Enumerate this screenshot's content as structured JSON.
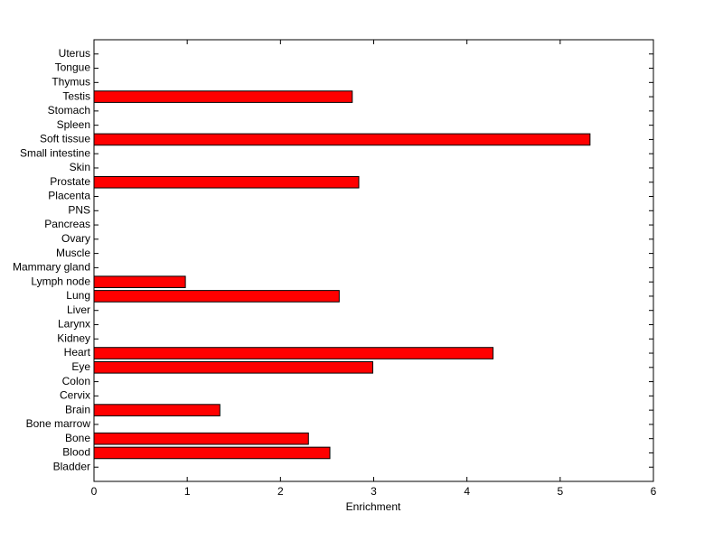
{
  "chart_data": {
    "type": "barh",
    "xlabel": "Enrichment",
    "categories": [
      "Bladder",
      "Blood",
      "Bone",
      "Bone marrow",
      "Brain",
      "Cervix",
      "Colon",
      "Eye",
      "Heart",
      "Kidney",
      "Larynx",
      "Liver",
      "Lung",
      "Lymph node",
      "Mammary gland",
      "Muscle",
      "Ovary",
      "Pancreas",
      "PNS",
      "Placenta",
      "Prostate",
      "Skin",
      "Small intestine",
      "Soft tissue",
      "Spleen",
      "Stomach",
      "Testis",
      "Thymus",
      "Tongue",
      "Uterus"
    ],
    "values": [
      0,
      2.53,
      2.3,
      0,
      1.35,
      0,
      0,
      2.99,
      4.28,
      0,
      0,
      0,
      2.63,
      0.98,
      0,
      0,
      0,
      0,
      0,
      0,
      2.84,
      0,
      0,
      5.32,
      0,
      0,
      2.77,
      0,
      0,
      0
    ],
    "color": "#ff0000",
    "xlim": [
      0,
      6
    ],
    "xticks": [
      0,
      1,
      2,
      3,
      4,
      5,
      6
    ]
  }
}
